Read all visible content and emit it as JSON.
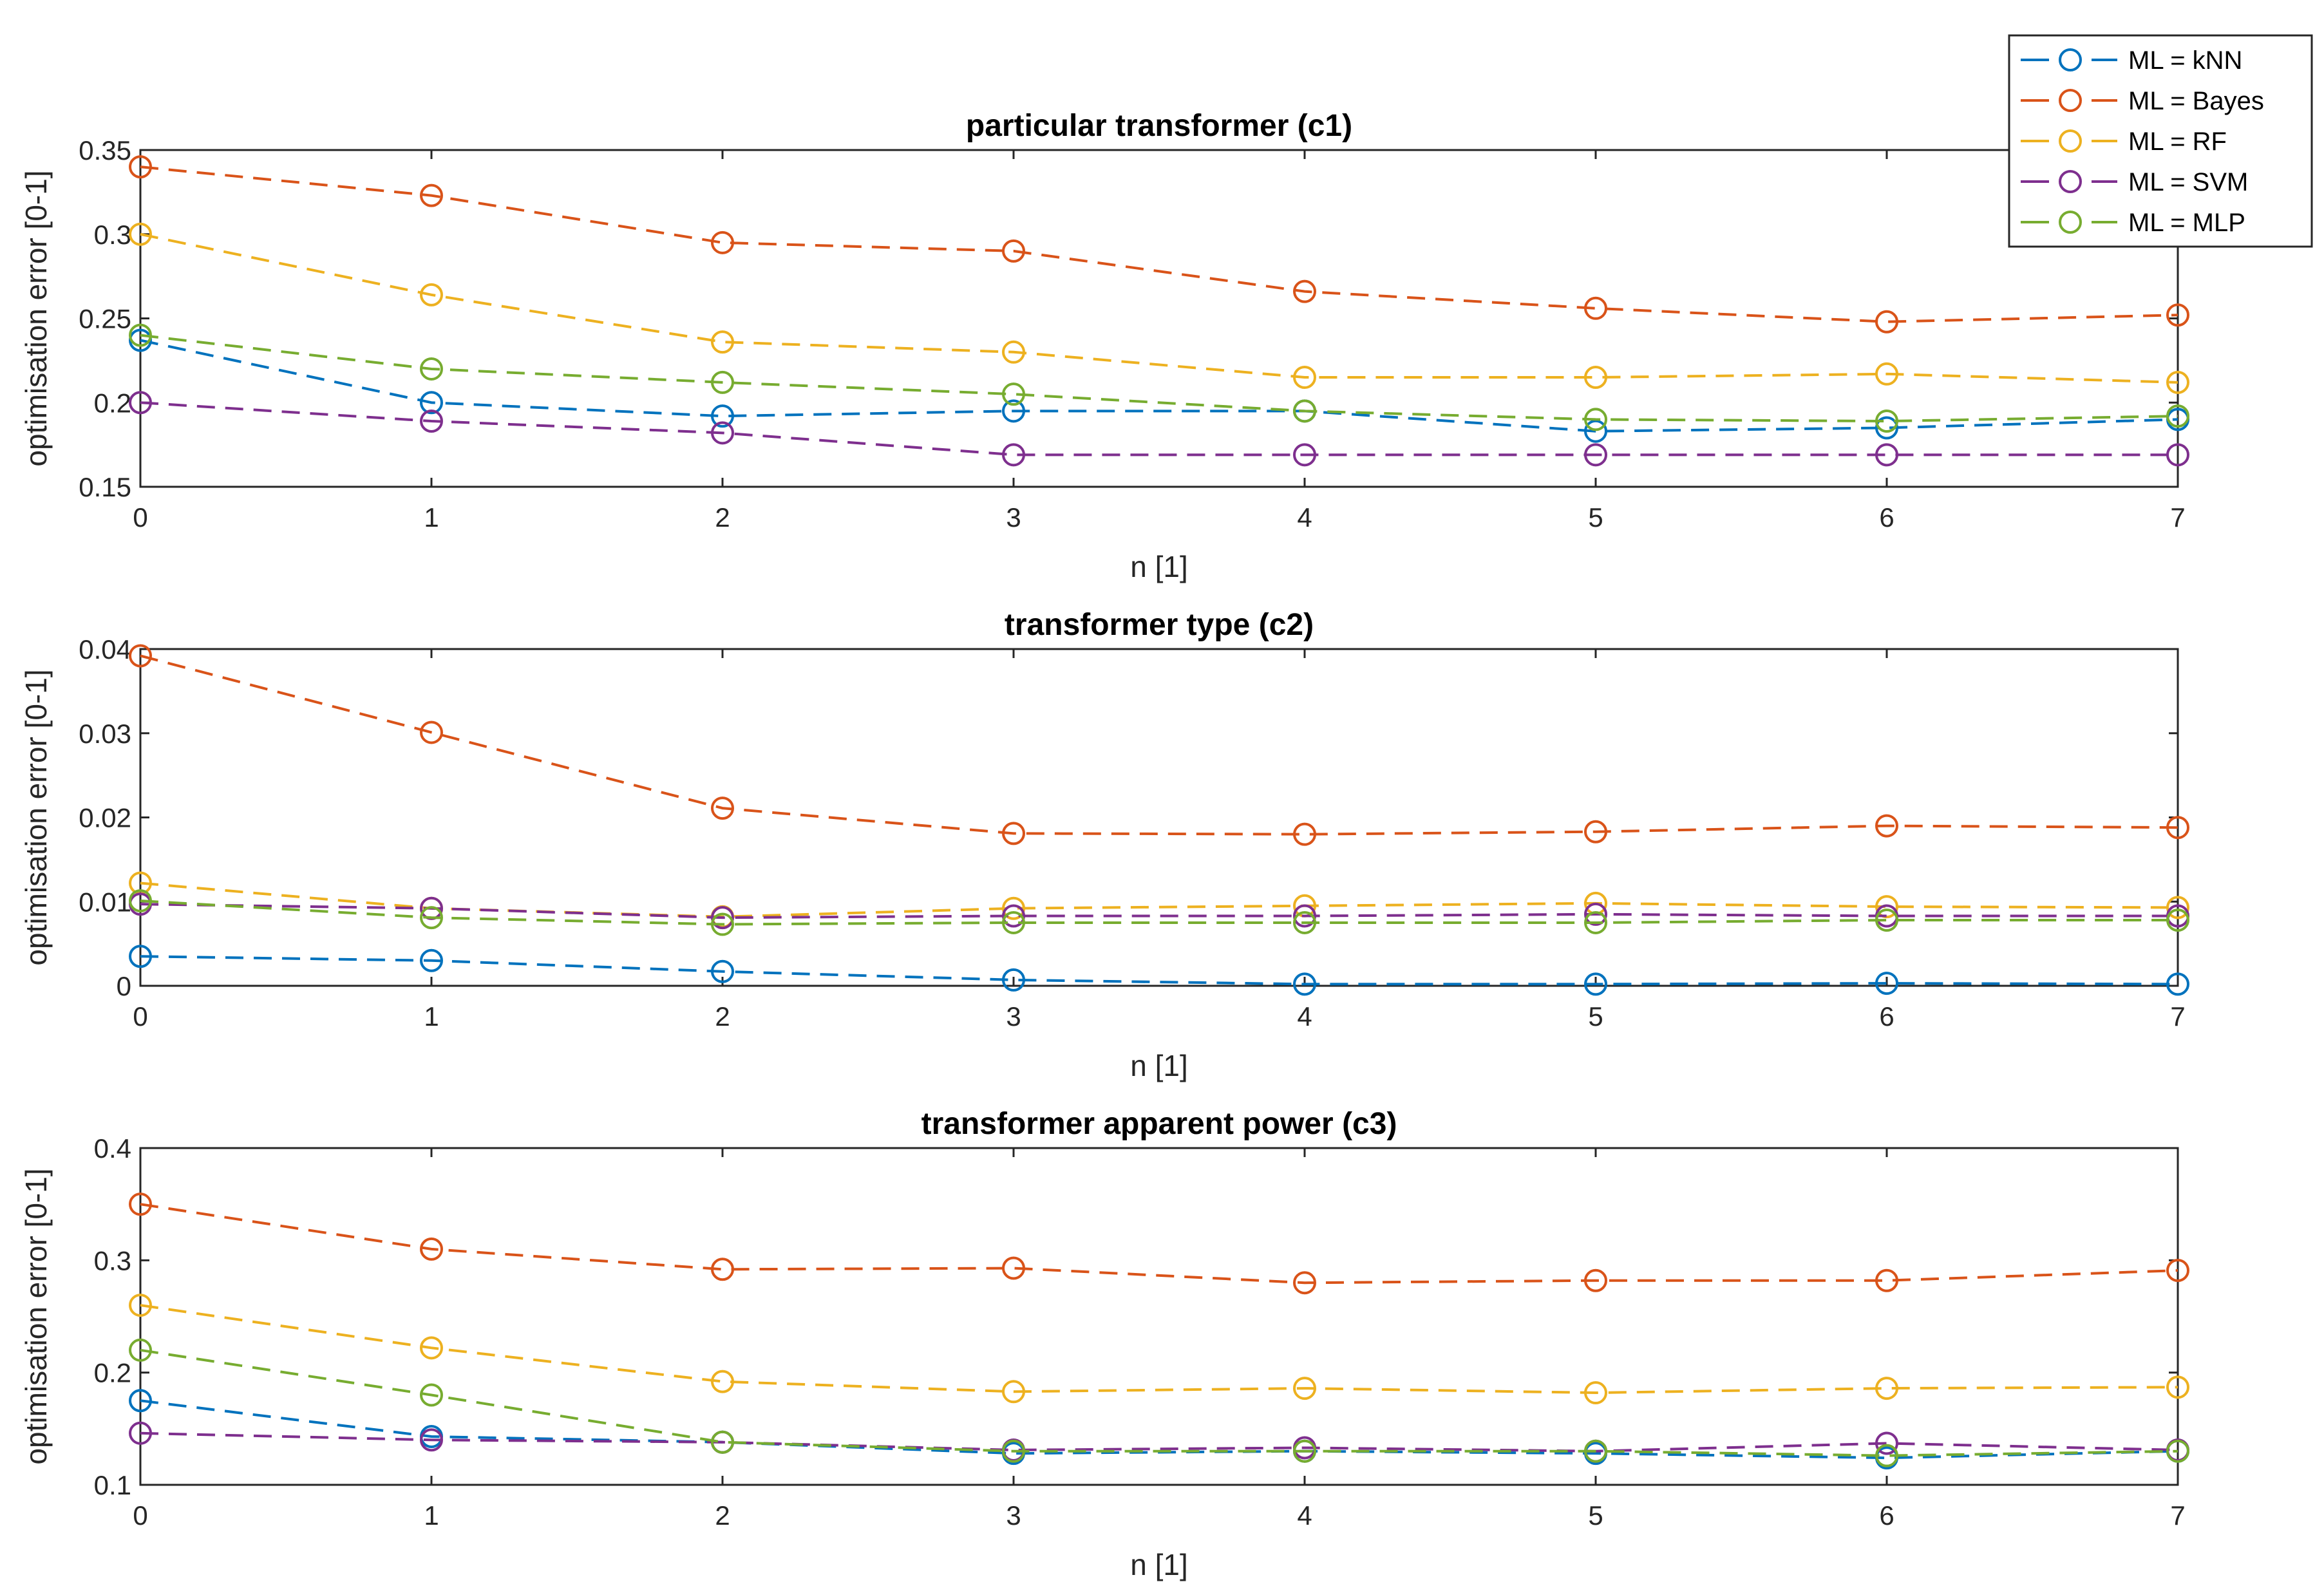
{
  "chart_data": {
    "type": "line",
    "legend": {
      "placement": "top-right",
      "entries": [
        {
          "name": "ML = kNN",
          "color": "#0072BD"
        },
        {
          "name": "ML = Bayes",
          "color": "#D95319"
        },
        {
          "name": "ML = RF",
          "color": "#EDB120"
        },
        {
          "name": "ML = SVM",
          "color": "#7E2F8E"
        },
        {
          "name": "ML = MLP",
          "color": "#77AC30"
        }
      ]
    },
    "panels": [
      {
        "title": "particular transformer (c1)",
        "xlabel": "n [1]",
        "ylabel": "optimisation error [0-1]",
        "x": [
          0,
          1,
          2,
          3,
          4,
          5,
          6,
          7
        ],
        "xticks": [
          "0",
          "1",
          "2",
          "3",
          "4",
          "5",
          "6",
          "7"
        ],
        "ylim": [
          0.15,
          0.35
        ],
        "yticks": [
          0.15,
          0.2,
          0.25,
          0.3,
          0.35
        ],
        "ytick_labels": [
          "0.15",
          "0.2",
          "0.25",
          "0.3",
          "0.35"
        ],
        "series": [
          {
            "name": "ML = kNN",
            "values": [
              0.237,
              0.2,
              0.192,
              0.195,
              0.195,
              0.183,
              0.185,
              0.19
            ]
          },
          {
            "name": "ML = Bayes",
            "values": [
              0.34,
              0.323,
              0.295,
              0.29,
              0.266,
              0.256,
              0.248,
              0.252
            ]
          },
          {
            "name": "ML = RF",
            "values": [
              0.3,
              0.264,
              0.236,
              0.23,
              0.215,
              0.215,
              0.217,
              0.212
            ]
          },
          {
            "name": "ML = SVM",
            "values": [
              0.2,
              0.189,
              0.182,
              0.169,
              0.169,
              0.169,
              0.169,
              0.169
            ]
          },
          {
            "name": "ML = MLP",
            "values": [
              0.24,
              0.22,
              0.212,
              0.205,
              0.195,
              0.19,
              0.189,
              0.192
            ]
          }
        ]
      },
      {
        "title": "transformer type (c2)",
        "xlabel": "n [1]",
        "ylabel": "optimisation  error [0-1]",
        "x": [
          0,
          1,
          2,
          3,
          4,
          5,
          6,
          7
        ],
        "xticks": [
          "0",
          "1",
          "2",
          "3",
          "4",
          "5",
          "6",
          "7"
        ],
        "ylim": [
          0,
          0.04
        ],
        "yticks": [
          0,
          0.01,
          0.02,
          0.03,
          0.04
        ],
        "ytick_labels": [
          "0",
          "0.01",
          "0.02",
          "0.03",
          "0.04"
        ],
        "series": [
          {
            "name": "ML = kNN",
            "values": [
              0.0035,
              0.003,
              0.0017,
              0.0007,
              0.0002,
              0.0002,
              0.0003,
              0.0002
            ]
          },
          {
            "name": "ML = Bayes",
            "values": [
              0.0392,
              0.0301,
              0.0211,
              0.0181,
              0.018,
              0.0183,
              0.019,
              0.0188
            ]
          },
          {
            "name": "ML = RF",
            "values": [
              0.0122,
              0.0092,
              0.0082,
              0.0092,
              0.0095,
              0.0098,
              0.0094,
              0.0093
            ]
          },
          {
            "name": "ML = SVM",
            "values": [
              0.0097,
              0.0092,
              0.0081,
              0.0083,
              0.0083,
              0.0085,
              0.0083,
              0.0083
            ]
          },
          {
            "name": "ML = MLP",
            "values": [
              0.0101,
              0.0081,
              0.0073,
              0.0075,
              0.0075,
              0.0075,
              0.0078,
              0.0078
            ]
          }
        ]
      },
      {
        "title": "transformer apparent power (c3)",
        "xlabel": "n [1]",
        "ylabel": "optimisation error [0-1]",
        "x": [
          0,
          1,
          2,
          3,
          4,
          5,
          6,
          7
        ],
        "xticks": [
          "0",
          "1",
          "2",
          "3",
          "4",
          "5",
          "6",
          "7"
        ],
        "ylim": [
          0.1,
          0.4
        ],
        "yticks": [
          0.1,
          0.2,
          0.3,
          0.4
        ],
        "ytick_labels": [
          "0.1",
          "0.2",
          "0.3",
          "0.4"
        ],
        "series": [
          {
            "name": "ML = kNN",
            "values": [
              0.175,
              0.143,
              0.138,
              0.128,
              0.13,
              0.128,
              0.124,
              0.13
            ]
          },
          {
            "name": "ML = Bayes",
            "values": [
              0.35,
              0.31,
              0.292,
              0.293,
              0.28,
              0.282,
              0.282,
              0.291
            ]
          },
          {
            "name": "ML = RF",
            "values": [
              0.26,
              0.222,
              0.192,
              0.183,
              0.186,
              0.182,
              0.186,
              0.187
            ]
          },
          {
            "name": "ML = SVM",
            "values": [
              0.146,
              0.14,
              0.138,
              0.131,
              0.133,
              0.13,
              0.137,
              0.131
            ]
          },
          {
            "name": "ML = MLP",
            "values": [
              0.22,
              0.18,
              0.138,
              0.13,
              0.13,
              0.13,
              0.126,
              0.13
            ]
          }
        ]
      }
    ]
  }
}
